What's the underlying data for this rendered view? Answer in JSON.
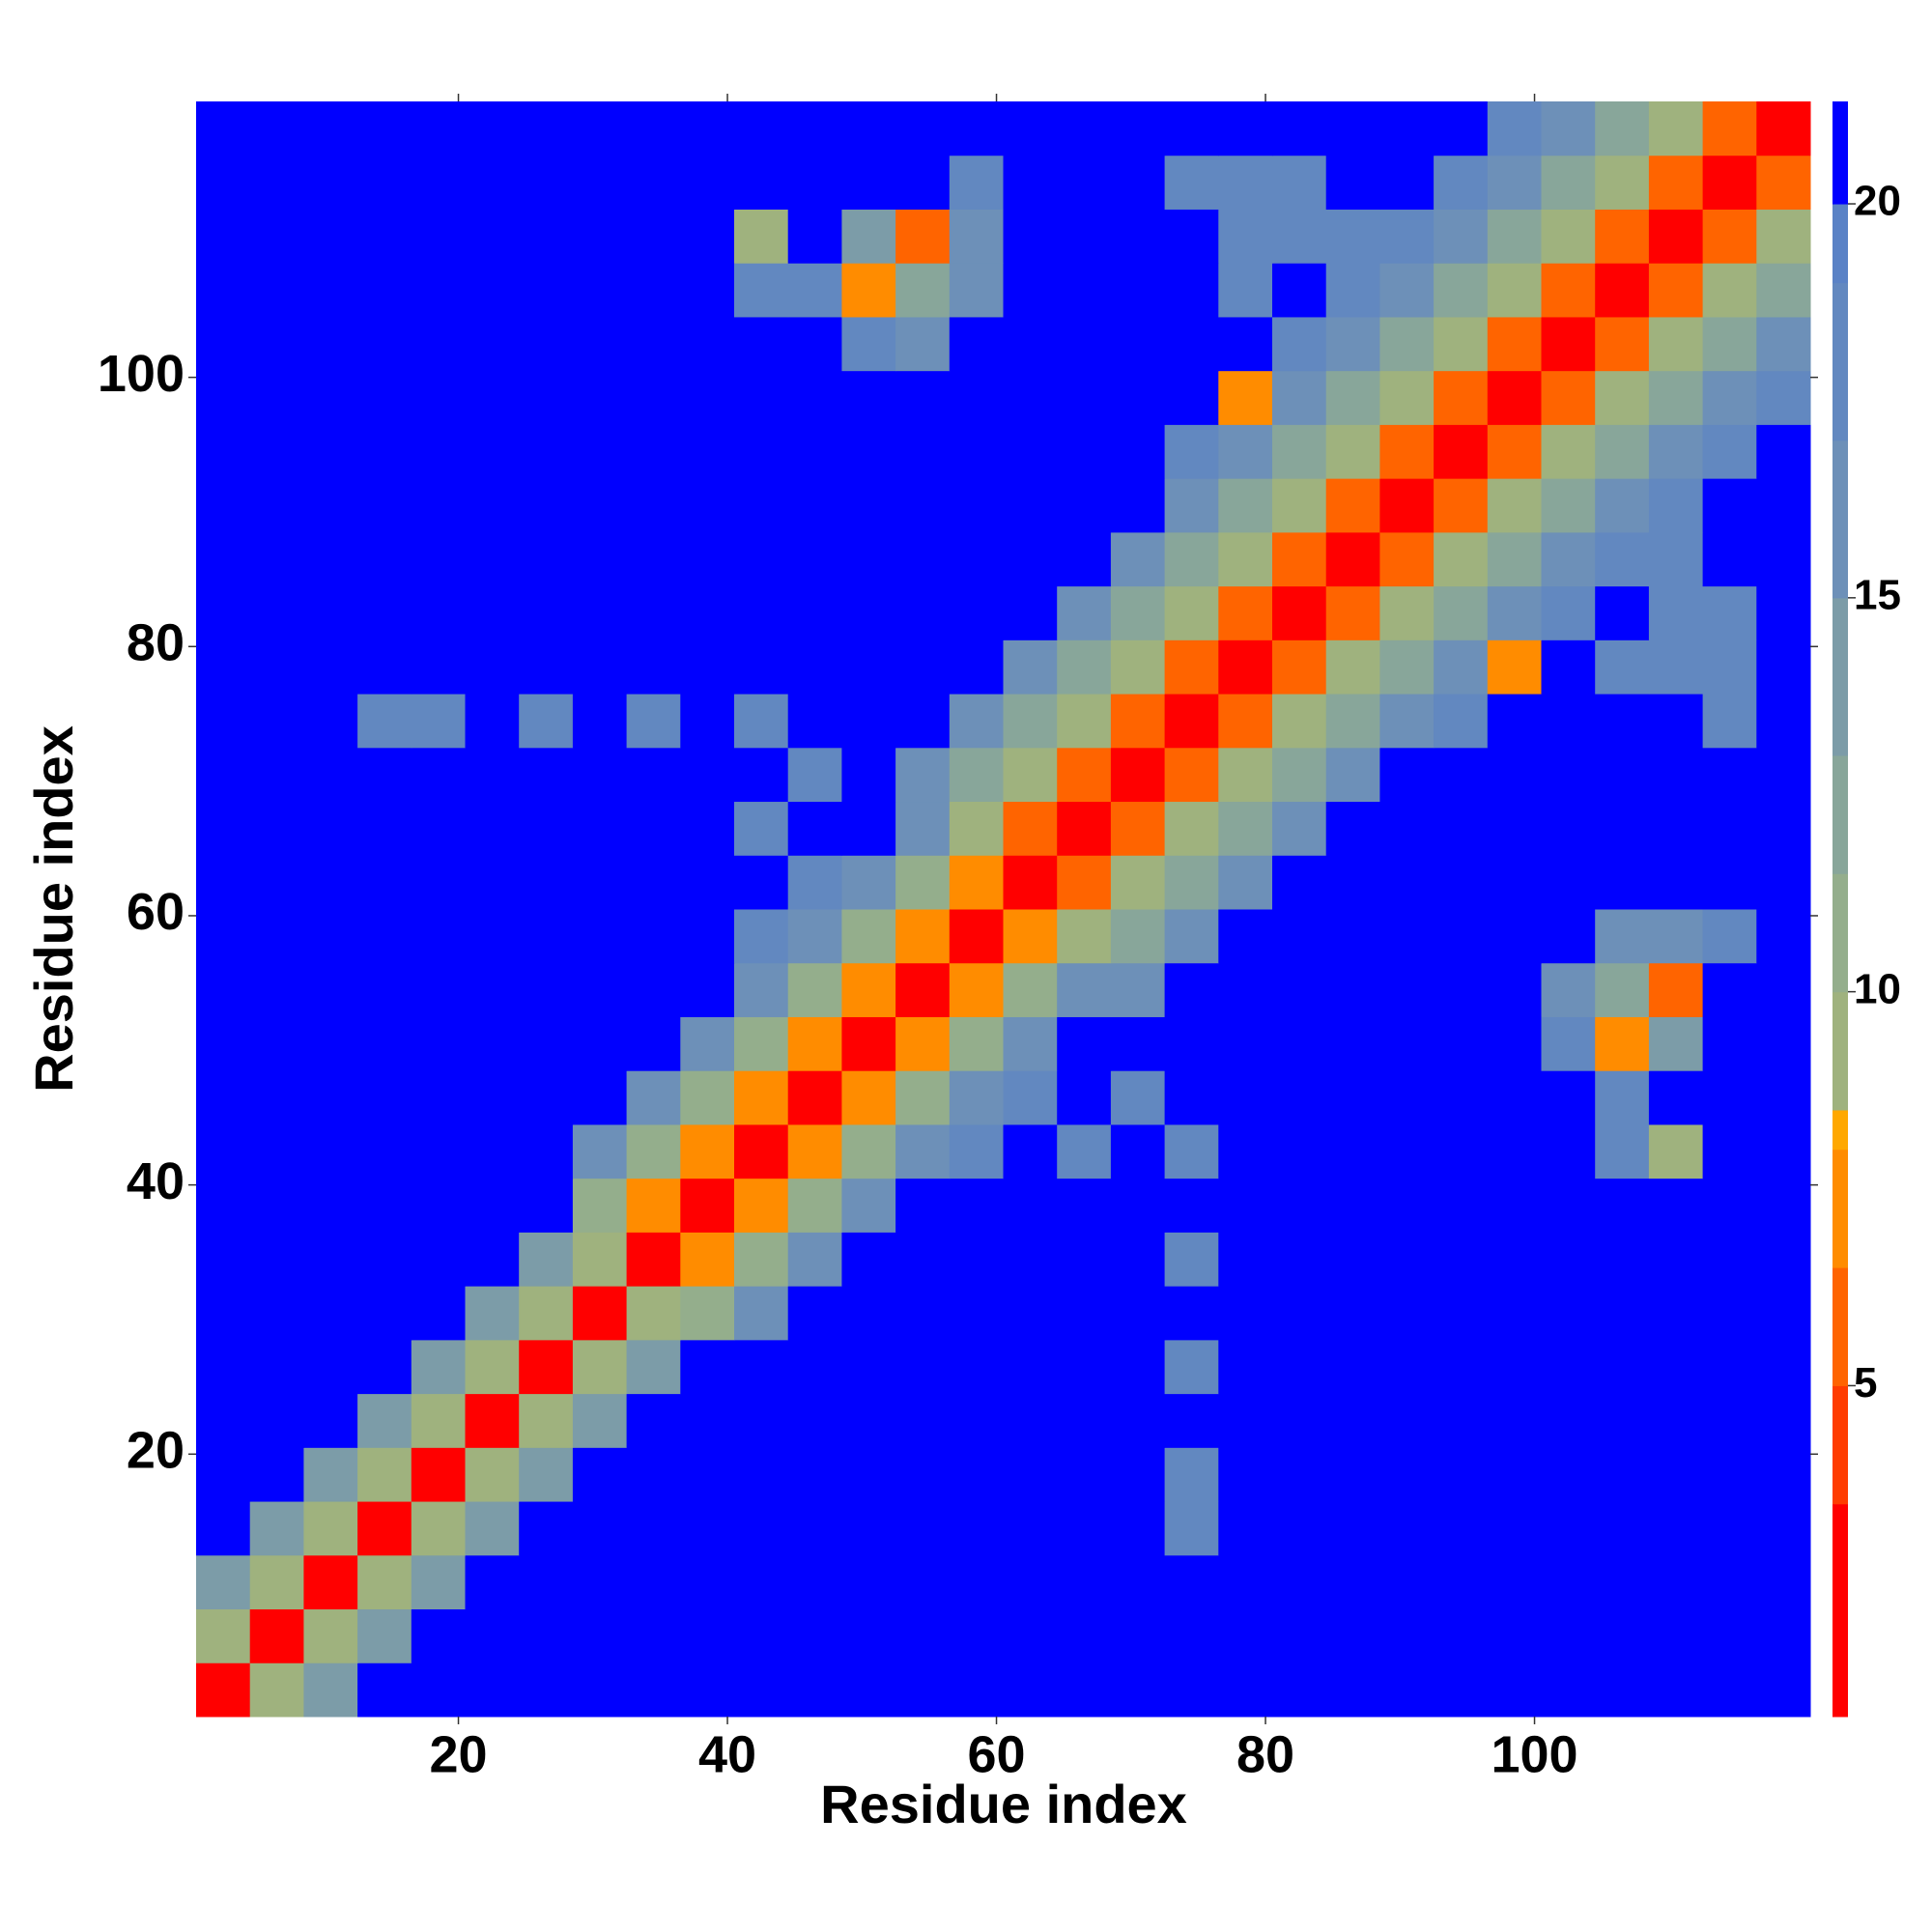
{
  "chart_data": {
    "type": "heatmap",
    "xlabel": "Residue index",
    "ylabel": "Residue index",
    "x": [
      2.5,
      6.5,
      10.5,
      14.5,
      18.5,
      22.5,
      26.5,
      30.5,
      34.5,
      38.5,
      42.5,
      46.5,
      50.5,
      54.5,
      58.5,
      62.5,
      66.5,
      70.5,
      74.5,
      78.5,
      82.5,
      86.5,
      90.5,
      94.5,
      98.5,
      102.5,
      106.5,
      110.5,
      114.5,
      118.5
    ],
    "y": [
      2.5,
      6.5,
      10.5,
      14.5,
      18.5,
      22.5,
      26.5,
      30.5,
      34.5,
      38.5,
      42.5,
      46.5,
      50.5,
      54.5,
      58.5,
      62.5,
      66.5,
      70.5,
      74.5,
      78.5,
      82.5,
      86.5,
      90.5,
      94.5,
      98.5,
      102.5,
      106.5,
      110.5,
      114.5,
      118.5
    ],
    "xlim": [
      0.5,
      120.5
    ],
    "ylim": [
      0.5,
      120.5
    ],
    "xticks": [
      20,
      40,
      60,
      80,
      100
    ],
    "yticks": [
      20,
      40,
      60,
      80,
      100
    ],
    "zlim": [
      0.8,
      21.3
    ],
    "zticks": [
      5,
      10,
      15,
      20
    ],
    "color_levels": [
      {
        "max": 3.5,
        "color": "#ff0000"
      },
      {
        "max": 5,
        "color": "#ff3c00"
      },
      {
        "max": 6.5,
        "color": "#ff6400"
      },
      {
        "max": 8,
        "color": "#ff8c00"
      },
      {
        "max": 8.5,
        "color": "#ffa800"
      },
      {
        "max": 10,
        "color": "#9fb27e"
      },
      {
        "max": 11.5,
        "color": "#94ae8c"
      },
      {
        "max": 13,
        "color": "#88a69a"
      },
      {
        "max": 15,
        "color": "#7c9ca8"
      },
      {
        "max": 17,
        "color": "#6d90b8"
      },
      {
        "max": 19,
        "color": "#6288c0"
      },
      {
        "max": 20,
        "color": "#5a82c6"
      },
      {
        "max": 21.3,
        "color": "#0000ff"
      }
    ],
    "z": [
      [
        2,
        9,
        14,
        21,
        21,
        21,
        21,
        21,
        21,
        21,
        21,
        21,
        21,
        21,
        21,
        21,
        21,
        21,
        21,
        21,
        21,
        21,
        21,
        21,
        21,
        21,
        21,
        21,
        21,
        21
      ],
      [
        9,
        2,
        9,
        14,
        21,
        21,
        21,
        21,
        21,
        21,
        21,
        21,
        21,
        21,
        21,
        21,
        21,
        21,
        21,
        21,
        21,
        21,
        21,
        21,
        21,
        21,
        21,
        21,
        21,
        21
      ],
      [
        14,
        9,
        2,
        9,
        14,
        21,
        21,
        21,
        21,
        21,
        21,
        21,
        21,
        21,
        21,
        21,
        21,
        21,
        21,
        21,
        21,
        21,
        21,
        21,
        21,
        21,
        21,
        21,
        21,
        21
      ],
      [
        21,
        14,
        9,
        2,
        9,
        14,
        21,
        21,
        21,
        21,
        21,
        21,
        21,
        21,
        21,
        21,
        21,
        21,
        19,
        21,
        21,
        21,
        21,
        21,
        21,
        21,
        21,
        21,
        21,
        21
      ],
      [
        21,
        21,
        14,
        9,
        2,
        9,
        14,
        21,
        21,
        21,
        21,
        21,
        21,
        21,
        21,
        21,
        21,
        21,
        19,
        21,
        21,
        21,
        21,
        21,
        21,
        21,
        21,
        21,
        21,
        21
      ],
      [
        21,
        21,
        21,
        14,
        9,
        2,
        9,
        14,
        21,
        21,
        21,
        21,
        21,
        21,
        21,
        21,
        21,
        21,
        21,
        21,
        21,
        21,
        21,
        21,
        21,
        21,
        21,
        21,
        21,
        21
      ],
      [
        21,
        21,
        21,
        21,
        14,
        9,
        2,
        9,
        14,
        21,
        21,
        21,
        21,
        21,
        21,
        21,
        21,
        21,
        19,
        21,
        21,
        21,
        21,
        21,
        21,
        21,
        21,
        21,
        21,
        21
      ],
      [
        21,
        21,
        21,
        21,
        21,
        14,
        9,
        2,
        9,
        11,
        16,
        21,
        21,
        21,
        21,
        21,
        21,
        21,
        21,
        21,
        21,
        21,
        21,
        21,
        21,
        21,
        21,
        21,
        21,
        21
      ],
      [
        21,
        21,
        21,
        21,
        21,
        21,
        14,
        9,
        2,
        7,
        11,
        16,
        21,
        21,
        21,
        21,
        21,
        21,
        19,
        21,
        21,
        21,
        21,
        21,
        21,
        21,
        21,
        21,
        21,
        21
      ],
      [
        21,
        21,
        21,
        21,
        21,
        21,
        21,
        11,
        7,
        2,
        7,
        11,
        16,
        21,
        21,
        21,
        21,
        21,
        21,
        21,
        21,
        21,
        21,
        21,
        21,
        21,
        21,
        21,
        21,
        21
      ],
      [
        21,
        21,
        21,
        21,
        21,
        21,
        21,
        16,
        11,
        7,
        2,
        7,
        11,
        16,
        18,
        21,
        18,
        21,
        19,
        21,
        21,
        21,
        21,
        21,
        21,
        21,
        19,
        9,
        21,
        21
      ],
      [
        21,
        21,
        21,
        21,
        21,
        21,
        21,
        21,
        16,
        11,
        7,
        2,
        7,
        11,
        16,
        18,
        21,
        19,
        21,
        21,
        21,
        21,
        21,
        21,
        21,
        21,
        18,
        21,
        21,
        21
      ],
      [
        21,
        21,
        21,
        21,
        21,
        21,
        21,
        21,
        21,
        16,
        11,
        7,
        2,
        7,
        11,
        16,
        21,
        21,
        21,
        21,
        21,
        21,
        21,
        21,
        21,
        18,
        7,
        14,
        21,
        21
      ],
      [
        21,
        21,
        21,
        21,
        21,
        21,
        21,
        21,
        21,
        21,
        16,
        11,
        7,
        2,
        7,
        11,
        16,
        17,
        21,
        21,
        21,
        21,
        21,
        21,
        21,
        16,
        12,
        6,
        21,
        21
      ],
      [
        21,
        21,
        21,
        21,
        21,
        21,
        21,
        21,
        21,
        21,
        18,
        16,
        11,
        7,
        2,
        7,
        10,
        13,
        17,
        21,
        21,
        21,
        21,
        21,
        21,
        21,
        16,
        16,
        18,
        21
      ],
      [
        21,
        21,
        21,
        21,
        21,
        21,
        21,
        21,
        21,
        21,
        21,
        18,
        16,
        11,
        7,
        2,
        6,
        10,
        13,
        17,
        21,
        21,
        21,
        21,
        21,
        21,
        21,
        21,
        21,
        21
      ],
      [
        21,
        21,
        21,
        21,
        21,
        21,
        21,
        21,
        21,
        21,
        18,
        21,
        21,
        16,
        10,
        6,
        2,
        6,
        10,
        13,
        17,
        21,
        21,
        21,
        21,
        21,
        21,
        21,
        21,
        21
      ],
      [
        21,
        21,
        21,
        21,
        21,
        21,
        21,
        21,
        21,
        21,
        21,
        19,
        21,
        17,
        13,
        10,
        6,
        2,
        6,
        10,
        13,
        17,
        21,
        21,
        21,
        21,
        21,
        21,
        21,
        21
      ],
      [
        21,
        21,
        21,
        19,
        19,
        21,
        19,
        21,
        19,
        21,
        19,
        21,
        21,
        21,
        17,
        13,
        10,
        6,
        2,
        6,
        10,
        13,
        17,
        19,
        21,
        21,
        21,
        21,
        18,
        21
      ],
      [
        21,
        21,
        21,
        21,
        21,
        21,
        21,
        21,
        21,
        21,
        21,
        21,
        21,
        21,
        21,
        17,
        13,
        10,
        6,
        2,
        6,
        10,
        13,
        17,
        7,
        21,
        18,
        19,
        19,
        21
      ],
      [
        21,
        21,
        21,
        21,
        21,
        21,
        21,
        21,
        21,
        21,
        21,
        21,
        21,
        21,
        21,
        21,
        17,
        13,
        10,
        6,
        2,
        6,
        10,
        13,
        17,
        19,
        21,
        18,
        19,
        21
      ],
      [
        21,
        21,
        21,
        21,
        21,
        21,
        21,
        21,
        21,
        21,
        21,
        21,
        21,
        21,
        21,
        21,
        21,
        17,
        13,
        10,
        6,
        2,
        6,
        10,
        13,
        17,
        19,
        19,
        21,
        21
      ],
      [
        21,
        21,
        21,
        21,
        21,
        21,
        21,
        21,
        21,
        21,
        21,
        21,
        21,
        21,
        21,
        21,
        21,
        21,
        17,
        13,
        10,
        6,
        2,
        6,
        10,
        13,
        17,
        19,
        21,
        21
      ],
      [
        21,
        21,
        21,
        21,
        21,
        21,
        21,
        21,
        21,
        21,
        21,
        21,
        21,
        21,
        21,
        21,
        21,
        21,
        19,
        17,
        13,
        10,
        6,
        2,
        6,
        10,
        13,
        17,
        19,
        21
      ],
      [
        21,
        21,
        21,
        21,
        21,
        21,
        21,
        21,
        21,
        21,
        21,
        21,
        21,
        21,
        21,
        21,
        21,
        21,
        21,
        7,
        17,
        13,
        10,
        6,
        2,
        6,
        10,
        13,
        17,
        19
      ],
      [
        21,
        21,
        21,
        21,
        21,
        21,
        21,
        21,
        21,
        21,
        21,
        21,
        18,
        16,
        21,
        21,
        21,
        21,
        21,
        21,
        19,
        17,
        13,
        10,
        6,
        2,
        6,
        10,
        13,
        17
      ],
      [
        21,
        21,
        21,
        21,
        21,
        21,
        21,
        21,
        21,
        21,
        19,
        18,
        7,
        12,
        16,
        21,
        21,
        21,
        21,
        18,
        21,
        19,
        17,
        13,
        10,
        6,
        2,
        6,
        10,
        13
      ],
      [
        21,
        21,
        21,
        21,
        21,
        21,
        21,
        21,
        21,
        21,
        9,
        21,
        14,
        6,
        16,
        21,
        21,
        21,
        21,
        19,
        18,
        19,
        19,
        17,
        13,
        10,
        6,
        2,
        6,
        10
      ],
      [
        21,
        21,
        21,
        21,
        21,
        21,
        21,
        21,
        21,
        21,
        21,
        21,
        21,
        21,
        18,
        21,
        21,
        21,
        18,
        19,
        19,
        21,
        21,
        19,
        17,
        13,
        10,
        6,
        2,
        6
      ],
      [
        21,
        21,
        21,
        21,
        21,
        21,
        21,
        21,
        21,
        21,
        21,
        21,
        21,
        21,
        21,
        21,
        21,
        21,
        21,
        21,
        21,
        21,
        21,
        21,
        19,
        17,
        13,
        10,
        6,
        2
      ]
    ]
  }
}
